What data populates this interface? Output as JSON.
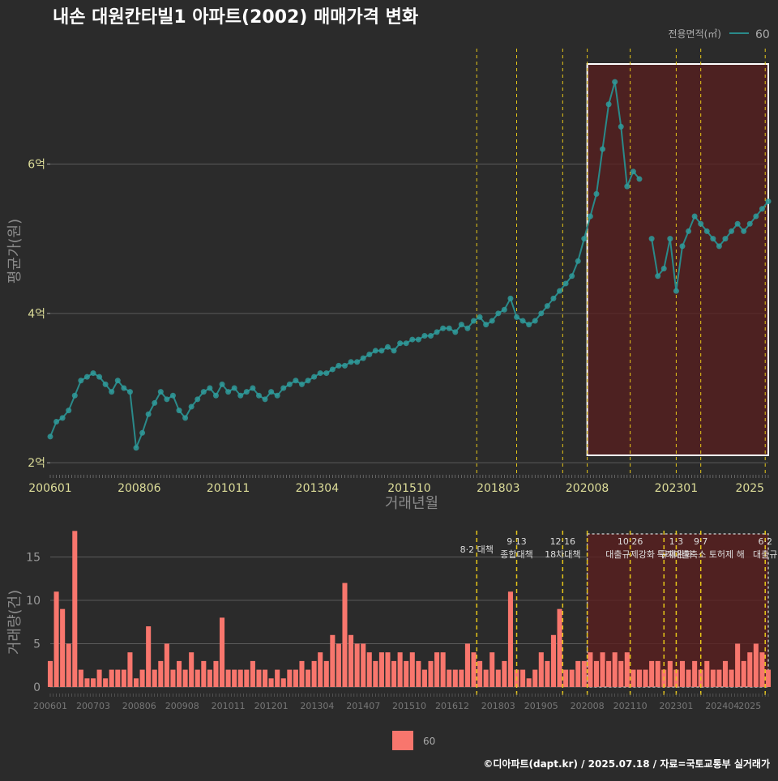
{
  "title": "내손 대원칸타빌1 아파트(2002) 매매가격 변화",
  "footer": "©디아파트(dapt.kr) / 2025.07.18 / 자료=국토교통부 실거래가",
  "colors": {
    "background": "#2b2b2b",
    "price_line": "#2a8a8a",
    "price_point": "#2f9a9a",
    "volume_bar": "#f8766d",
    "policy_line": "#e6c619",
    "highlight_fill": "#5a1f1f",
    "grid": "#5a5a5a"
  },
  "chart_data": [
    {
      "type": "line",
      "panel": "price",
      "legend_title": "전용면적(㎡)",
      "legend_items": [
        "60"
      ],
      "ylabel": "평균가(원)",
      "xlabel": "거래년월",
      "y_ticks": [
        {
          "value": 2,
          "label": "2억"
        },
        {
          "value": 4,
          "label": "4억"
        },
        {
          "value": 6,
          "label": "6억"
        }
      ],
      "x_ticks": [
        "200601",
        "200806",
        "201011",
        "201304",
        "201510",
        "201803",
        "202008",
        "202301",
        "2025"
      ],
      "ylim": [
        1.85,
        7.6
      ],
      "highlight_range": [
        "2020-08",
        "2025-07"
      ],
      "policy_lines": [
        "2017-08",
        "2018-09",
        "2019-12",
        "2020-08",
        "2021-10",
        "2023-01",
        "2023-09",
        "2025-06"
      ],
      "series": [
        {
          "name": "60",
          "x": [
            "2006-01",
            "2006-03",
            "2006-05",
            "2006-07",
            "2006-09",
            "2006-11",
            "2007-01",
            "2007-03",
            "2007-05",
            "2007-07",
            "2007-09",
            "2007-11",
            "2008-01",
            "2008-03",
            "2008-05",
            "2008-07",
            "2008-09",
            "2008-11",
            "2009-01",
            "2009-03",
            "2009-05",
            "2009-07",
            "2009-09",
            "2009-11",
            "2010-01",
            "2010-03",
            "2010-05",
            "2010-07",
            "2010-09",
            "2010-11",
            "2011-01",
            "2011-03",
            "2011-05",
            "2011-07",
            "2011-09",
            "2011-11",
            "2012-01",
            "2012-03",
            "2012-05",
            "2012-07",
            "2012-09",
            "2012-11",
            "2013-01",
            "2013-03",
            "2013-05",
            "2013-07",
            "2013-09",
            "2013-11",
            "2014-01",
            "2014-03",
            "2014-05",
            "2014-07",
            "2014-09",
            "2014-11",
            "2015-01",
            "2015-03",
            "2015-05",
            "2015-07",
            "2015-09",
            "2015-11",
            "2016-01",
            "2016-03",
            "2016-05",
            "2016-07",
            "2016-09",
            "2016-11",
            "2017-01",
            "2017-03",
            "2017-05",
            "2017-07",
            "2017-09",
            "2017-11",
            "2018-01",
            "2018-03",
            "2018-05",
            "2018-07",
            "2018-09",
            "2018-11",
            "2019-01",
            "2019-03",
            "2019-05",
            "2019-07",
            "2019-09",
            "2019-11",
            "2020-01",
            "2020-03",
            "2020-05",
            "2020-07",
            "2020-09",
            "2020-11",
            "2021-01",
            "2021-03",
            "2021-05",
            "2021-07",
            "2021-09",
            "2021-11",
            "2022-01",
            "2022-03",
            "2022-05",
            "2022-07",
            "2022-09",
            "2022-11",
            "2023-01",
            "2023-03",
            "2023-05",
            "2023-07",
            "2023-09",
            "2023-11",
            "2024-01",
            "2024-03",
            "2024-05",
            "2024-07",
            "2024-09",
            "2024-11",
            "2025-01",
            "2025-03",
            "2025-05",
            "2025-07"
          ],
          "values": [
            2.35,
            2.55,
            2.6,
            2.7,
            2.9,
            3.1,
            3.15,
            3.2,
            3.15,
            3.05,
            2.95,
            3.1,
            3.0,
            2.95,
            2.2,
            2.4,
            2.65,
            2.8,
            2.95,
            2.85,
            2.9,
            2.7,
            2.6,
            2.75,
            2.85,
            2.95,
            3.0,
            2.9,
            3.05,
            2.95,
            3.0,
            2.9,
            2.95,
            3.0,
            2.9,
            2.85,
            2.95,
            2.9,
            3.0,
            3.05,
            3.1,
            3.05,
            3.1,
            3.15,
            3.2,
            3.2,
            3.25,
            3.3,
            3.3,
            3.35,
            3.35,
            3.4,
            3.45,
            3.5,
            3.5,
            3.55,
            3.5,
            3.6,
            3.6,
            3.65,
            3.65,
            3.7,
            3.7,
            3.75,
            3.8,
            3.8,
            3.75,
            3.85,
            3.8,
            3.9,
            3.95,
            3.85,
            3.9,
            4.0,
            4.05,
            4.2,
            3.95,
            3.9,
            3.85,
            3.9,
            4.0,
            4.1,
            4.2,
            4.3,
            4.4,
            4.5,
            4.7,
            5.0,
            5.3,
            5.6,
            6.2,
            6.8,
            7.1,
            6.5,
            5.7,
            5.9,
            5.8,
            null,
            5.0,
            4.5,
            4.6,
            5.0,
            4.3,
            4.9,
            5.1,
            5.3,
            5.2,
            5.1,
            5.0,
            4.9,
            5.0,
            5.1,
            5.2,
            5.1,
            5.2,
            5.3,
            5.4,
            5.5
          ]
        }
      ]
    },
    {
      "type": "bar",
      "panel": "volume",
      "ylabel": "거래량(건)",
      "legend_items": [
        "60"
      ],
      "y_ticks": [
        {
          "value": 0,
          "label": "0"
        },
        {
          "value": 5,
          "label": "5"
        },
        {
          "value": 10,
          "label": "10"
        },
        {
          "value": 15,
          "label": "15"
        }
      ],
      "x_ticks": [
        "200601",
        "200703",
        "200806",
        "200908",
        "201011",
        "201201",
        "201304",
        "201407",
        "201510",
        "201612",
        "201803",
        "201905",
        "202008",
        "202110",
        "202301",
        "202404",
        "2025"
      ],
      "ylim": [
        0,
        18.5
      ],
      "highlight_range": [
        "2020-08",
        "2025-07"
      ],
      "policy_lines": [
        "2017-08",
        "2018-09",
        "2019-12",
        "2020-08",
        "2021-10",
        "2022-09",
        "2023-01",
        "2023-09",
        "2025-06"
      ],
      "annotations": [
        {
          "date": "2017-08",
          "lines": [
            "8·2 대책"
          ]
        },
        {
          "date": "2018-09",
          "lines": [
            "9·13",
            "종합대책"
          ]
        },
        {
          "date": "2019-12",
          "lines": [
            "12·16",
            "18차대책"
          ]
        },
        {
          "date": "2021-10",
          "lines": [
            "10·26",
            "대출규제강화"
          ]
        },
        {
          "date": "2023-01",
          "lines": [
            "1·3",
            "규제완화"
          ]
        },
        {
          "date": "2023-09",
          "lines": [
            "9·7",
            "특례대출축소 토허제 해"
          ]
        },
        {
          "date": "2025-06",
          "lines": [
            "6·2",
            "대출규"
          ]
        }
      ],
      "series": [
        {
          "name": "60",
          "x": [
            "2006-01",
            "2006-03",
            "2006-05",
            "2006-07",
            "2006-09",
            "2006-11",
            "2007-01",
            "2007-03",
            "2007-05",
            "2007-07",
            "2007-09",
            "2007-11",
            "2008-01",
            "2008-03",
            "2008-05",
            "2008-07",
            "2008-09",
            "2008-11",
            "2009-01",
            "2009-03",
            "2009-05",
            "2009-07",
            "2009-09",
            "2009-11",
            "2010-01",
            "2010-03",
            "2010-05",
            "2010-07",
            "2010-09",
            "2010-11",
            "2011-01",
            "2011-03",
            "2011-05",
            "2011-07",
            "2011-09",
            "2011-11",
            "2012-01",
            "2012-03",
            "2012-05",
            "2012-07",
            "2012-09",
            "2012-11",
            "2013-01",
            "2013-03",
            "2013-05",
            "2013-07",
            "2013-09",
            "2013-11",
            "2014-01",
            "2014-03",
            "2014-05",
            "2014-07",
            "2014-09",
            "2014-11",
            "2015-01",
            "2015-03",
            "2015-05",
            "2015-07",
            "2015-09",
            "2015-11",
            "2016-01",
            "2016-03",
            "2016-05",
            "2016-07",
            "2016-09",
            "2016-11",
            "2017-01",
            "2017-03",
            "2017-05",
            "2017-07",
            "2017-09",
            "2017-11",
            "2018-01",
            "2018-03",
            "2018-05",
            "2018-07",
            "2018-09",
            "2018-11",
            "2019-01",
            "2019-03",
            "2019-05",
            "2019-07",
            "2019-09",
            "2019-11",
            "2020-01",
            "2020-03",
            "2020-05",
            "2020-07",
            "2020-09",
            "2020-11",
            "2021-01",
            "2021-03",
            "2021-05",
            "2021-07",
            "2021-09",
            "2021-11",
            "2022-01",
            "2022-03",
            "2022-05",
            "2022-07",
            "2022-09",
            "2022-11",
            "2023-01",
            "2023-03",
            "2023-05",
            "2023-07",
            "2023-09",
            "2023-11",
            "2024-01",
            "2024-03",
            "2024-05",
            "2024-07",
            "2024-09",
            "2024-11",
            "2025-01",
            "2025-03",
            "2025-05",
            "2025-07"
          ],
          "values": [
            3,
            11,
            9,
            5,
            18,
            2,
            1,
            1,
            2,
            1,
            2,
            2,
            2,
            4,
            1,
            2,
            7,
            2,
            3,
            5,
            2,
            3,
            2,
            4,
            2,
            3,
            2,
            3,
            8,
            2,
            2,
            2,
            2,
            3,
            2,
            2,
            1,
            2,
            1,
            2,
            2,
            3,
            2,
            3,
            4,
            3,
            6,
            5,
            12,
            6,
            5,
            5,
            4,
            3,
            4,
            4,
            3,
            4,
            3,
            4,
            3,
            2,
            3,
            4,
            4,
            2,
            2,
            2,
            5,
            4,
            3,
            2,
            4,
            2,
            3,
            11,
            2,
            2,
            1,
            2,
            4,
            3,
            6,
            9,
            2,
            2,
            3,
            3,
            4,
            3,
            4,
            3,
            4,
            3,
            4,
            2,
            2,
            2,
            3,
            3,
            2,
            3,
            2,
            3,
            2,
            3,
            2,
            3,
            2,
            2,
            3,
            2,
            5,
            3,
            4,
            5,
            4,
            2
          ]
        }
      ]
    }
  ]
}
